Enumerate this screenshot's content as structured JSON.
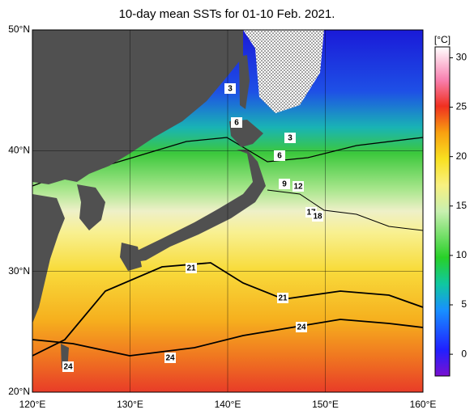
{
  "title": "10-day mean SSTs for 01-10 Feb. 2021.",
  "map": {
    "xlim": [
      120,
      160
    ],
    "ylim": [
      20,
      50
    ],
    "xticks": [
      {
        "value": 120,
        "label": "120°E"
      },
      {
        "value": 130,
        "label": "130°E"
      },
      {
        "value": 140,
        "label": "140°E"
      },
      {
        "value": 150,
        "label": "150°E"
      },
      {
        "value": 160,
        "label": "160°E"
      }
    ],
    "yticks": [
      {
        "value": 20,
        "label": "20°N"
      },
      {
        "value": 30,
        "label": "30°N"
      },
      {
        "value": 40,
        "label": "40°N"
      },
      {
        "value": 50,
        "label": "50°N"
      }
    ]
  },
  "colorbar": {
    "unit": "[°C]",
    "range": [
      -2.2,
      31.1
    ],
    "ticks": [
      0,
      5,
      10,
      15,
      20,
      25,
      30
    ]
  },
  "contour_labels": [
    3,
    6,
    3,
    6,
    9,
    12,
    17,
    18,
    21,
    21,
    24,
    24,
    24
  ]
}
